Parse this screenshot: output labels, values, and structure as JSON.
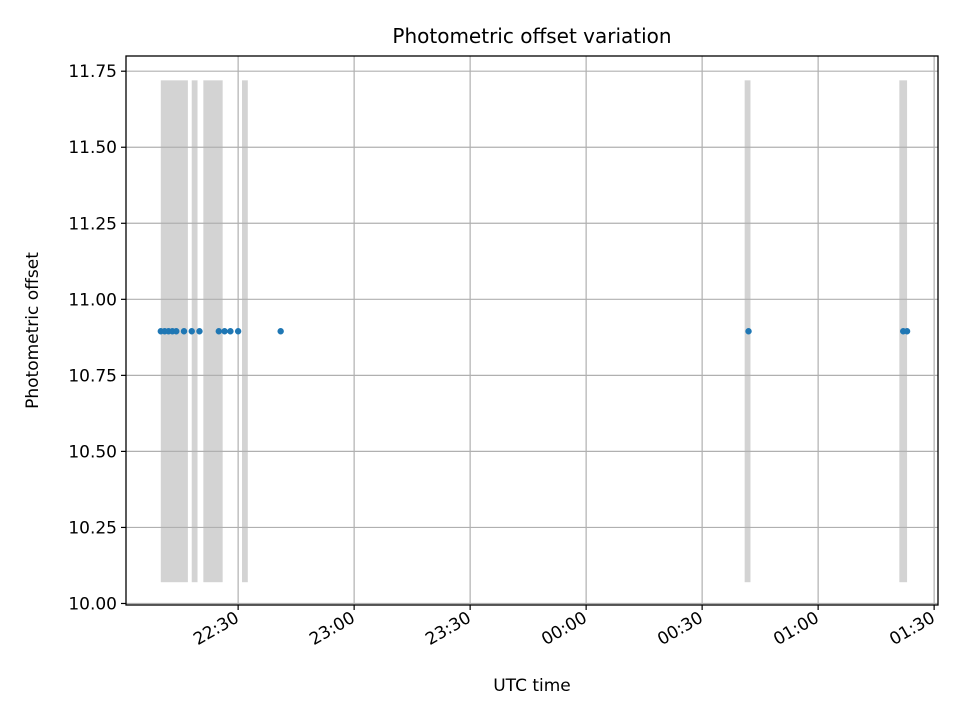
{
  "chart_data": {
    "type": "scatter",
    "title": "Photometric offset variation",
    "xlabel": "UTC time",
    "ylabel": "Photometric offset",
    "xlim": [
      "22:01",
      "01:31"
    ],
    "ylim": [
      9.995,
      11.8
    ],
    "x_ticks": [
      "22:30",
      "23:00",
      "23:30",
      "00:00",
      "00:30",
      "01:00",
      "01:30"
    ],
    "y_ticks": [
      "10.00",
      "10.25",
      "10.50",
      "10.75",
      "11.00",
      "11.25",
      "11.50",
      "11.75"
    ],
    "grid": true,
    "series": [
      {
        "points": [
          {
            "x": "22:10:00",
            "y": 10.895
          },
          {
            "x": "22:11:00",
            "y": 10.895
          },
          {
            "x": "22:12:00",
            "y": 10.895
          },
          {
            "x": "22:13:00",
            "y": 10.895
          },
          {
            "x": "22:14:00",
            "y": 10.895
          },
          {
            "x": "22:16:00",
            "y": 10.895
          },
          {
            "x": "22:18:00",
            "y": 10.895
          },
          {
            "x": "22:20:00",
            "y": 10.895
          },
          {
            "x": "22:25:00",
            "y": 10.895
          },
          {
            "x": "22:26:30",
            "y": 10.895
          },
          {
            "x": "22:28:00",
            "y": 10.895
          },
          {
            "x": "22:30:00",
            "y": 10.895
          },
          {
            "x": "22:41:00",
            "y": 10.895
          },
          {
            "x": "00:42:00",
            "y": 10.895
          },
          {
            "x": "01:22:00",
            "y": 10.895
          },
          {
            "x": "01:23:00",
            "y": 10.895
          }
        ],
        "color": "#1f77b4"
      }
    ],
    "shaded_intervals": {
      "y_range": [
        10.07,
        11.72
      ],
      "color": "#d3d3d3",
      "intervals": [
        [
          "22:10:00",
          "22:17:00"
        ],
        [
          "22:18:00",
          "22:19:30"
        ],
        [
          "22:21:00",
          "22:26:00"
        ],
        [
          "22:31:00",
          "22:32:30"
        ],
        [
          "00:41:00",
          "00:42:30"
        ],
        [
          "01:21:00",
          "01:23:00"
        ]
      ]
    }
  }
}
